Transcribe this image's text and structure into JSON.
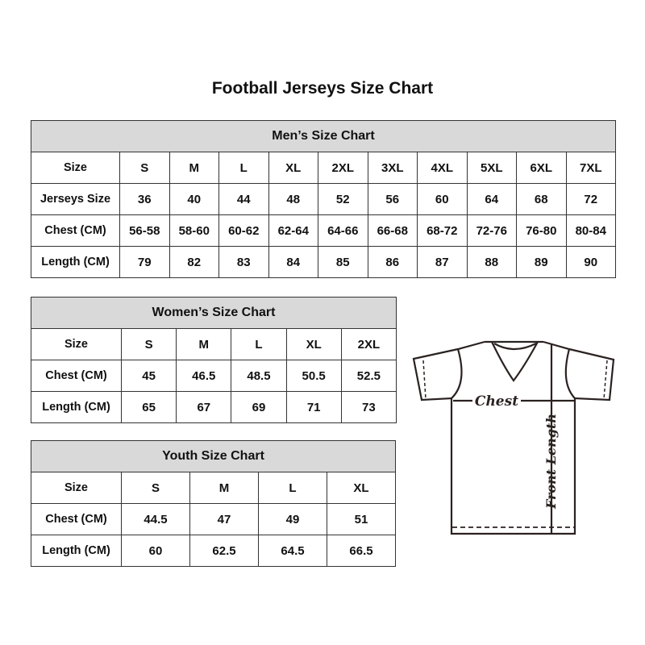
{
  "title": "Football Jerseys Size Chart",
  "men": {
    "caption": "Men’s Size Chart",
    "rows": [
      {
        "label": "Size",
        "values": [
          "S",
          "M",
          "L",
          "XL",
          "2XL",
          "3XL",
          "4XL",
          "5XL",
          "6XL",
          "7XL"
        ]
      },
      {
        "label": "Jerseys Size",
        "values": [
          "36",
          "40",
          "44",
          "48",
          "52",
          "56",
          "60",
          "64",
          "68",
          "72"
        ]
      },
      {
        "label": "Chest (CM)",
        "values": [
          "56-58",
          "58-60",
          "60-62",
          "62-64",
          "64-66",
          "66-68",
          "68-72",
          "72-76",
          "76-80",
          "80-84"
        ]
      },
      {
        "label": "Length (CM)",
        "values": [
          "79",
          "82",
          "83",
          "84",
          "85",
          "86",
          "87",
          "88",
          "89",
          "90"
        ]
      }
    ]
  },
  "women": {
    "caption": "Women’s Size Chart",
    "rows": [
      {
        "label": "Size",
        "values": [
          "S",
          "M",
          "L",
          "XL",
          "2XL"
        ]
      },
      {
        "label": "Chest (CM)",
        "values": [
          "45",
          "46.5",
          "48.5",
          "50.5",
          "52.5"
        ]
      },
      {
        "label": "Length (CM)",
        "values": [
          "65",
          "67",
          "69",
          "71",
          "73"
        ]
      }
    ]
  },
  "youth": {
    "caption": "Youth Size Chart",
    "rows": [
      {
        "label": "Size",
        "values": [
          "S",
          "M",
          "L",
          "XL"
        ]
      },
      {
        "label": "Chest (CM)",
        "values": [
          "44.5",
          "47",
          "49",
          "51"
        ]
      },
      {
        "label": "Length (CM)",
        "values": [
          "60",
          "62.5",
          "64.5",
          "66.5"
        ]
      }
    ]
  },
  "diagram": {
    "chest_label": "Chest",
    "length_label": "Front Length"
  },
  "colors": {
    "header_bg": "#d9d9d9",
    "border": "#333333"
  }
}
